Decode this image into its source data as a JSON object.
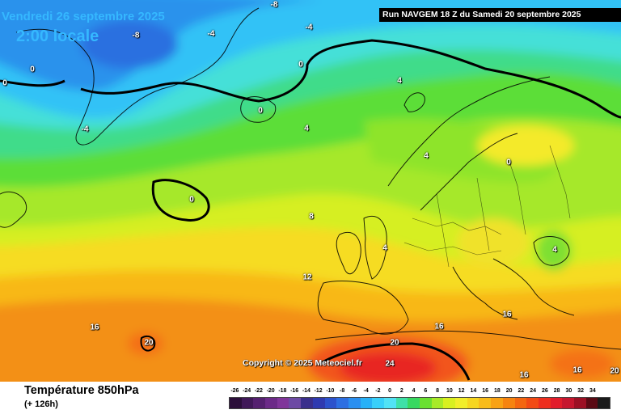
{
  "header": {
    "date": "Vendredi 26 septembre 2025",
    "time": "2:00 locale",
    "run": "Run NAVGEM 18 Z du Samedi 20 septembre 2025"
  },
  "copyright": "Copyright © 2025 Meteociel.fr",
  "legend": {
    "title": "Température 850hPa",
    "subtitle": "(+ 126h)",
    "scale": [
      {
        "v": "-26",
        "c": "#2b0e3a"
      },
      {
        "v": "-24",
        "c": "#401858"
      },
      {
        "v": "-22",
        "c": "#552070"
      },
      {
        "v": "-20",
        "c": "#6c2a88"
      },
      {
        "v": "-18",
        "c": "#80359a"
      },
      {
        "v": "-16",
        "c": "#6d4aa4"
      },
      {
        "v": "-14",
        "c": "#3a2f8c"
      },
      {
        "v": "-12",
        "c": "#2f3ab0"
      },
      {
        "v": "-10",
        "c": "#2c52cc"
      },
      {
        "v": "-8",
        "c": "#2d6fe2"
      },
      {
        "v": "-6",
        "c": "#2a8ff0"
      },
      {
        "v": "-4",
        "c": "#27b1f7"
      },
      {
        "v": "-2",
        "c": "#38d0fa"
      },
      {
        "v": "0",
        "c": "#52e2f5"
      },
      {
        "v": "2",
        "c": "#3ee0a8"
      },
      {
        "v": "4",
        "c": "#38d860"
      },
      {
        "v": "6",
        "c": "#6ae030"
      },
      {
        "v": "8",
        "c": "#a8ea28"
      },
      {
        "v": "10",
        "c": "#d8f020"
      },
      {
        "v": "12",
        "c": "#f2ee2a"
      },
      {
        "v": "14",
        "c": "#f6d620"
      },
      {
        "v": "16",
        "c": "#f8bc1a"
      },
      {
        "v": "18",
        "c": "#f8a214"
      },
      {
        "v": "20",
        "c": "#f68410"
      },
      {
        "v": "22",
        "c": "#f46610"
      },
      {
        "v": "24",
        "c": "#f24a14"
      },
      {
        "v": "26",
        "c": "#ee2e1e"
      },
      {
        "v": "28",
        "c": "#e21c2a"
      },
      {
        "v": "30",
        "c": "#c6162e"
      },
      {
        "v": "32",
        "c": "#9c1024"
      },
      {
        "v": "34",
        "c": "#5a0a14"
      },
      {
        "v": "",
        "c": "#1a1a1a"
      }
    ]
  },
  "isotherm_labels": [
    "-8",
    "-8",
    "-4",
    "-4",
    "0",
    "0",
    "0",
    "-4",
    "4",
    "0",
    "4",
    "4",
    "0",
    "0",
    "8",
    "4",
    "12",
    "16",
    "20",
    "16",
    "20",
    "24",
    "16",
    "16",
    "16",
    "4",
    "20"
  ]
}
